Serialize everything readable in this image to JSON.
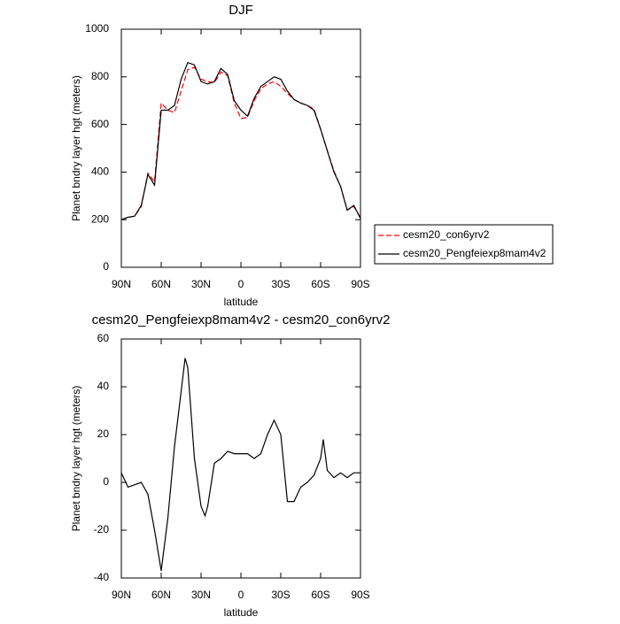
{
  "chart_data": [
    {
      "type": "line",
      "title": "DJF",
      "xlabel": "latitude",
      "ylabel": "Planet bndry layer hgt (meters)",
      "x": [
        90,
        85,
        80,
        75,
        70,
        65,
        60,
        55,
        50,
        45,
        40,
        35,
        30,
        25,
        20,
        15,
        10,
        5,
        0,
        -5,
        -10,
        -15,
        -20,
        -25,
        -30,
        -35,
        -40,
        -45,
        -50,
        -55,
        -60,
        -65,
        -70,
        -75,
        -80,
        -85,
        -90
      ],
      "series": [
        {
          "name": "cesm20_con6yrv2",
          "color": "#ff0000",
          "style": "dashed",
          "values": [
            200,
            210,
            215,
            255,
            395,
            360,
            690,
            660,
            650,
            740,
            830,
            840,
            790,
            780,
            775,
            820,
            805,
            690,
            625,
            630,
            700,
            750,
            770,
            780,
            760,
            730,
            705,
            690,
            680,
            665,
            580,
            490,
            405,
            340,
            240,
            255,
            210
          ]
        },
        {
          "name": "cesm20_Pengfeiexp8mam4v2",
          "color": "#000000",
          "style": "solid",
          "values": [
            200,
            210,
            215,
            260,
            390,
            345,
            660,
            660,
            680,
            790,
            860,
            850,
            780,
            770,
            780,
            835,
            810,
            700,
            660,
            635,
            710,
            760,
            780,
            800,
            790,
            740,
            705,
            690,
            680,
            660,
            580,
            490,
            400,
            340,
            240,
            260,
            205
          ]
        }
      ],
      "xlim": [
        90,
        -90
      ],
      "xticks": [
        {
          "value": 90,
          "label": "90N"
        },
        {
          "value": 60,
          "label": "60N"
        },
        {
          "value": 30,
          "label": "30N"
        },
        0,
        {
          "value": -30,
          "label": "30S"
        },
        {
          "value": -60,
          "label": "60S"
        },
        {
          "value": -90,
          "label": "90S"
        }
      ],
      "ylim": [
        0,
        1000
      ],
      "yticks": [
        0,
        200,
        400,
        600,
        800,
        1000
      ],
      "legend": "outside-right"
    },
    {
      "type": "line",
      "title": "cesm20_Pengfeiexp8mam4v2 - cesm20_con6yrv2",
      "xlabel": "latitude",
      "ylabel": "Planet bndry layer hgt (meters)",
      "x": [
        90,
        85,
        80,
        75,
        70,
        65,
        60,
        55,
        50,
        45,
        42,
        40,
        35,
        30,
        27,
        25,
        20,
        15,
        10,
        5,
        0,
        -5,
        -10,
        -15,
        -20,
        -25,
        -30,
        -35,
        -40,
        -45,
        -50,
        -55,
        -60,
        -62,
        -65,
        -70,
        -75,
        -80,
        -85,
        -90
      ],
      "series": [
        {
          "color": "#000000",
          "style": "solid",
          "values": [
            4,
            -2,
            -1,
            0,
            -5,
            -20,
            -37,
            -15,
            15,
            38,
            52,
            48,
            10,
            -10,
            -14,
            -10,
            8,
            10,
            13,
            12,
            12,
            12,
            10,
            12,
            20,
            26,
            20,
            -8,
            -8,
            -2,
            0,
            3,
            10,
            18,
            5,
            2,
            4,
            2,
            4,
            4
          ]
        }
      ],
      "xlim": [
        90,
        -90
      ],
      "xticks": [
        {
          "value": 90,
          "label": "90N"
        },
        {
          "value": 60,
          "label": "60N"
        },
        {
          "value": 30,
          "label": "30N"
        },
        0,
        {
          "value": -30,
          "label": "30S"
        },
        {
          "value": -60,
          "label": "60S"
        },
        {
          "value": -90,
          "label": "90S"
        }
      ],
      "ylim": [
        -40,
        60
      ],
      "yticks": [
        -40,
        -20,
        0,
        20,
        40,
        60
      ]
    }
  ]
}
